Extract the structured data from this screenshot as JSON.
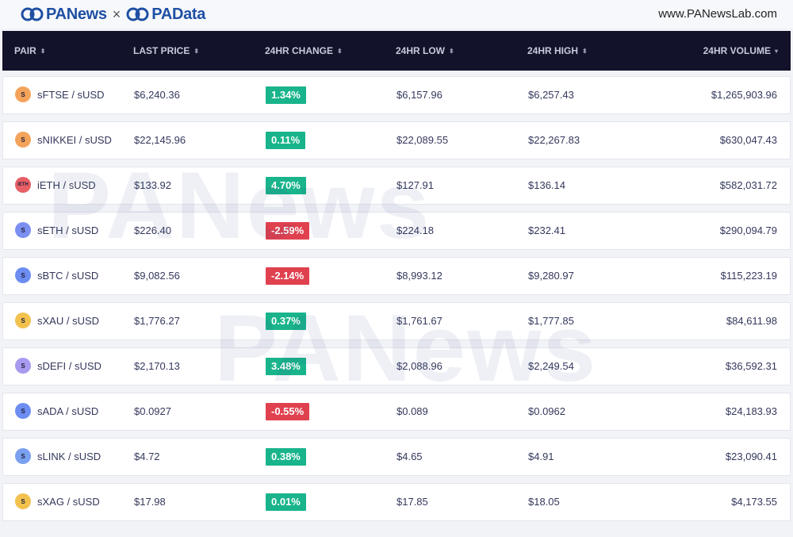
{
  "header": {
    "brand_left": "PANews",
    "brand_sep": "×",
    "brand_right": "PAData",
    "site_url": "www.PANewsLab.com"
  },
  "table": {
    "columns": [
      {
        "label": "PAIR",
        "sort": "⬍"
      },
      {
        "label": "LAST PRICE",
        "sort": "⬍"
      },
      {
        "label": "24HR CHANGE",
        "sort": "⬍"
      },
      {
        "label": "24HR LOW",
        "sort": "⬍"
      },
      {
        "label": "24HR HIGH",
        "sort": "⬍"
      },
      {
        "label": "24HR VOLUME",
        "sort": "▾"
      }
    ],
    "rows": [
      {
        "icon": "S",
        "icon_color": "#f4a35a",
        "pair": "sFTSE / sUSD",
        "price": "$6,240.36",
        "change": "1.34%",
        "change_color": "#19b48b",
        "low": "$6,157.96",
        "high": "$6,257.43",
        "volume": "$1,265,903.96"
      },
      {
        "icon": "S",
        "icon_color": "#f4a35a",
        "pair": "sNIKKEI / sUSD",
        "price": "$22,145.96",
        "change": "0.11%",
        "change_color": "#19b48b",
        "low": "$22,089.55",
        "high": "$22,267.83",
        "volume": "$630,047.43"
      },
      {
        "icon": "iETH",
        "icon_color": "#e85f66",
        "pair": "iETH / sUSD",
        "price": "$133.92",
        "change": "4.70%",
        "change_color": "#19b48b",
        "low": "$127.91",
        "high": "$136.14",
        "volume": "$582,031.72"
      },
      {
        "icon": "S",
        "icon_color": "#7b8ff0",
        "pair": "sETH / sUSD",
        "price": "$226.40",
        "change": "-2.59%",
        "change_color": "#e0414f",
        "low": "$224.18",
        "high": "$232.41",
        "volume": "$290,094.79"
      },
      {
        "icon": "S",
        "icon_color": "#6d8df2",
        "pair": "sBTC / sUSD",
        "price": "$9,082.56",
        "change": "-2.14%",
        "change_color": "#e0414f",
        "low": "$8,993.12",
        "high": "$9,280.97",
        "volume": "$115,223.19"
      },
      {
        "icon": "S",
        "icon_color": "#f2c14e",
        "pair": "sXAU / sUSD",
        "price": "$1,776.27",
        "change": "0.37%",
        "change_color": "#19b48b",
        "low": "$1,761.67",
        "high": "$1,777.85",
        "volume": "$84,611.98"
      },
      {
        "icon": "S",
        "icon_color": "#a99af0",
        "pair": "sDEFI / sUSD",
        "price": "$2,170.13",
        "change": "3.48%",
        "change_color": "#19b48b",
        "low": "$2,088.96",
        "high": "$2,249.54",
        "volume": "$36,592.31"
      },
      {
        "icon": "S",
        "icon_color": "#6d8df2",
        "pair": "sADA / sUSD",
        "price": "$0.0927",
        "change": "-0.55%",
        "change_color": "#e0414f",
        "low": "$0.089",
        "high": "$0.0962",
        "volume": "$24,183.93"
      },
      {
        "icon": "S",
        "icon_color": "#7aa0f0",
        "pair": "sLINK / sUSD",
        "price": "$4.72",
        "change": "0.38%",
        "change_color": "#19b48b",
        "low": "$4.65",
        "high": "$4.91",
        "volume": "$23,090.41"
      },
      {
        "icon": "S",
        "icon_color": "#f2c14e",
        "pair": "sXAG / sUSD",
        "price": "$17.98",
        "change": "0.01%",
        "change_color": "#19b48b",
        "low": "$17.85",
        "high": "$18.05",
        "volume": "$4,173.55"
      }
    ]
  },
  "watermark": {
    "text": "PANews"
  }
}
